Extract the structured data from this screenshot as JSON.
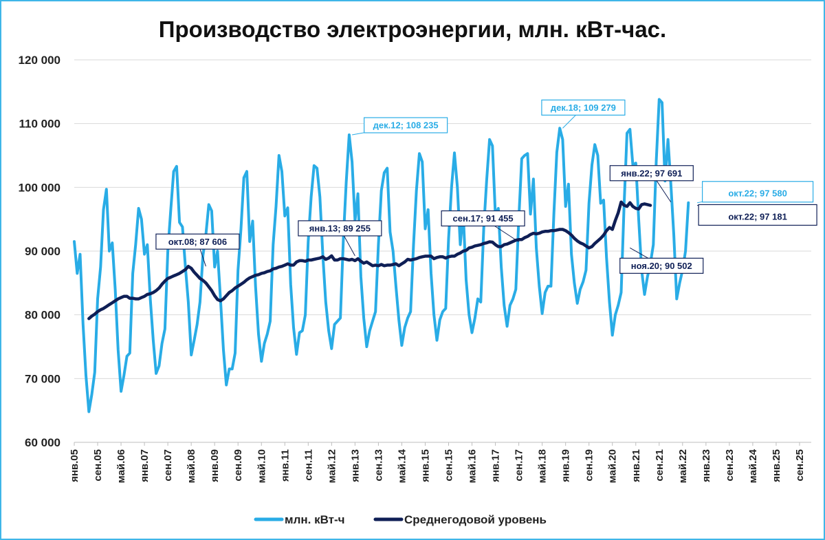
{
  "chart_data": {
    "type": "line",
    "title": "Производство электроэнергии, млн. кВт-час.",
    "xlabel": "",
    "ylabel": "",
    "ylim": [
      60000,
      120000
    ],
    "ytick_step": 10000,
    "yticks": [
      "60 000",
      "70 000",
      "80 000",
      "90 000",
      "100 000",
      "110 000",
      "120 000"
    ],
    "grid": "horizontal",
    "legend_position": "bottom",
    "x_start": "янв.05",
    "x_end": "янв.26",
    "xticks": [
      "янв.05",
      "сен.05",
      "май.06",
      "янв.07",
      "сен.07",
      "май.08",
      "янв.09",
      "сен.09",
      "май.10",
      "янв.11",
      "сен.11",
      "май.12",
      "янв.13",
      "сен.13",
      "май.14",
      "янв.15",
      "сен.15",
      "май.16",
      "янв.17",
      "сен.17",
      "май.18",
      "янв.19",
      "сен.19",
      "май.20",
      "янв.21",
      "сен.21",
      "май.22",
      "янв.23",
      "сен.23",
      "май.24",
      "янв.25",
      "сен.25"
    ],
    "series": [
      {
        "name": "млн. кВт-ч",
        "color": "#29ace6",
        "start": "янв.05",
        "values": [
          91500,
          86500,
          89500,
          78500,
          70500,
          64800,
          67500,
          71000,
          82500,
          87500,
          96500,
          99700,
          90000,
          91300,
          84000,
          74500,
          68000,
          70500,
          73500,
          74000,
          86500,
          91000,
          96700,
          95000,
          89500,
          91000,
          82500,
          76000,
          70800,
          72000,
          75500,
          77800,
          90000,
          96500,
          102500,
          103300,
          94500,
          93800,
          87500,
          82000,
          73700,
          76000,
          78500,
          82000,
          89300,
          92500,
          97300,
          96300,
          87500,
          90000,
          82500,
          74500,
          69000,
          71500,
          71500,
          74000,
          87000,
          93500,
          101500,
          102500,
          91500,
          94700,
          84500,
          77000,
          72700,
          75500,
          77000,
          79000,
          91000,
          97000,
          105000,
          102500,
          95500,
          96800,
          84800,
          78000,
          73800,
          77200,
          77500,
          80000,
          91500,
          98500,
          103400,
          103000,
          98500,
          89300,
          82000,
          77500,
          74700,
          78500,
          79000,
          79500,
          91800,
          100800,
          108235,
          104000,
          94700,
          99000,
          86000,
          79500,
          75000,
          77500,
          79000,
          80500,
          91000,
          99500,
          102300,
          103000,
          93000,
          90000,
          84500,
          79200,
          75200,
          78000,
          79500,
          80500,
          91000,
          99500,
          105300,
          104000,
          93500,
          96500,
          86500,
          80000,
          76000,
          79200,
          80500,
          81000,
          92000,
          100000,
          105400,
          100000,
          91000,
          96000,
          85500,
          80000,
          77200,
          79500,
          82500,
          82000,
          93500,
          101000,
          107500,
          106500,
          95500,
          96700,
          87500,
          81500,
          78200,
          81500,
          82500,
          84000,
          95000,
          104500,
          105000,
          105300,
          95800,
          101300,
          90500,
          84500,
          80200,
          83500,
          84500,
          84500,
          96000,
          105500,
          109279,
          107500,
          97000,
          100500,
          89500,
          85000,
          81800,
          84000,
          85200,
          87000,
          97500,
          103500,
          106700,
          105000,
          97500,
          98000,
          89000,
          82000,
          76800,
          80000,
          81500,
          83500,
          97000,
          108500,
          109100,
          103500,
          103800,
          95000,
          87000,
          83200,
          86000,
          88000,
          91000,
          104000,
          113800,
          113300,
          101000,
          107500,
          100500,
          92500,
          82500,
          85000,
          87000,
          90000,
          97580
        ]
      },
      {
        "name": "Среднегодовой уровень",
        "color": "#0f1f56",
        "start": "июн.05",
        "values": [
          79400,
          79800,
          80100,
          80500,
          80800,
          81000,
          81300,
          81600,
          81900,
          82200,
          82500,
          82700,
          82900,
          82900,
          82600,
          82600,
          82500,
          82500,
          82700,
          82900,
          83200,
          83300,
          83500,
          83800,
          84200,
          84800,
          85300,
          85700,
          85900,
          86100,
          86300,
          86500,
          86800,
          87100,
          87606,
          87300,
          86700,
          86200,
          85700,
          85400,
          85000,
          84400,
          83800,
          83000,
          82400,
          82200,
          82500,
          83000,
          83500,
          83800,
          84200,
          84500,
          84800,
          85100,
          85500,
          85800,
          86000,
          86200,
          86300,
          86500,
          86600,
          86800,
          86900,
          87200,
          87300,
          87500,
          87600,
          87800,
          88000,
          87800,
          87800,
          88300,
          88500,
          88500,
          88400,
          88600,
          88600,
          88700,
          88800,
          88900,
          89100,
          88700,
          88900,
          89255,
          88600,
          88600,
          88800,
          88800,
          88700,
          88600,
          88700,
          88500,
          88800,
          88400,
          88100,
          88300,
          88000,
          87700,
          87800,
          87700,
          87900,
          87700,
          87800,
          87800,
          87900,
          88000,
          87700,
          88000,
          88300,
          88700,
          88600,
          88700,
          88800,
          89000,
          89100,
          89200,
          89200,
          89200,
          88800,
          89000,
          89100,
          89100,
          88900,
          89100,
          89200,
          89200,
          89500,
          89700,
          90000,
          90100,
          90500,
          90600,
          90800,
          90900,
          91000,
          91200,
          91300,
          91455,
          91400,
          91000,
          90700,
          90700,
          91000,
          91100,
          91300,
          91500,
          91700,
          91800,
          91800,
          92100,
          92300,
          92600,
          92800,
          92700,
          92800,
          93000,
          93100,
          93100,
          93200,
          93200,
          93300,
          93400,
          93400,
          93200,
          92900,
          92500,
          92000,
          91600,
          91300,
          91100,
          90800,
          90502,
          90700,
          91200,
          91600,
          92000,
          92500,
          93200,
          93700,
          93400,
          94800,
          96000,
          97691,
          97200,
          97000,
          97600,
          97000,
          96700,
          96600,
          97300,
          97400,
          97300,
          97181
        ]
      }
    ],
    "annotations": [
      {
        "text": "окт.08;  87 606",
        "series": 1,
        "date": "окт.08",
        "value": 87606,
        "style": "dark"
      },
      {
        "text": "янв.13;  89 255",
        "series": 1,
        "date": "янв.13",
        "value": 89255,
        "style": "dark"
      },
      {
        "text": "сен.17;  91 455",
        "series": 1,
        "date": "сен.17",
        "value": 91455,
        "style": "dark"
      },
      {
        "text": "янв.22;  97 691",
        "series": 1,
        "date": "янв.22",
        "value": 97691,
        "style": "dark"
      },
      {
        "text": "ноя.20;  90 502",
        "series": 1,
        "date": "ноя.20",
        "value": 90502,
        "style": "dark"
      },
      {
        "text": "окт.22;  97 181",
        "series": 1,
        "date": "окт.22",
        "value": 97181,
        "style": "dark-large"
      },
      {
        "text": "дек.12; 108 235",
        "series": 0,
        "date": "дек.12",
        "value": 108235,
        "style": "light"
      },
      {
        "text": "дек.18; 109 279",
        "series": 0,
        "date": "дек.18",
        "value": 109279,
        "style": "light"
      },
      {
        "text": "окт.22; 97 580",
        "series": 0,
        "date": "окт.22",
        "value": 97580,
        "style": "light-large"
      }
    ]
  }
}
